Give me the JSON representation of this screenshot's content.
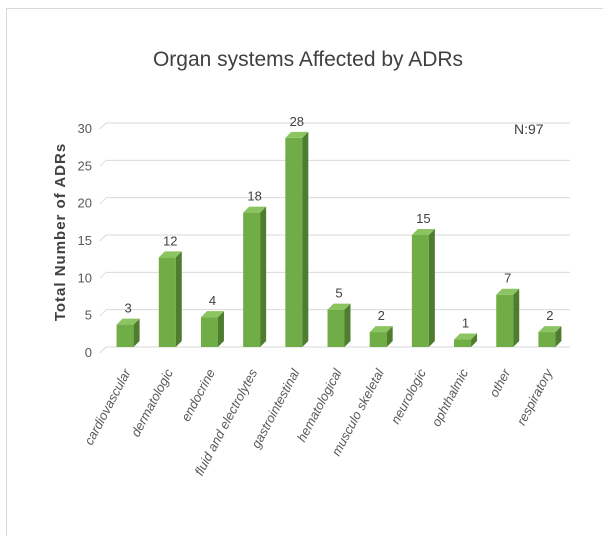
{
  "chart_data": {
    "type": "bar",
    "title": "Organ systems Affected by ADRs",
    "ylabel": "Total Number of ADRs",
    "xlabel": "",
    "annotation": "N:97",
    "categories": [
      "cardiovascular",
      "dermatologic",
      "endocrine",
      "fluid and electrolytes",
      "gastrointestinal",
      "hematological",
      "musculo skeletal",
      "neurologic",
      "ophthalmic",
      "other",
      "respiratory"
    ],
    "values": [
      3,
      12,
      4,
      18,
      28,
      5,
      2,
      15,
      1,
      7,
      2
    ],
    "ylim": [
      0,
      30
    ],
    "yticks": [
      0,
      5,
      10,
      15,
      20,
      25,
      30
    ],
    "grid": true,
    "legend": "none",
    "colors": {
      "bar_front": "#70ad47",
      "bar_side": "#4e7d30",
      "bar_top": "#8cc462",
      "grid": "#d9d9d9"
    }
  }
}
